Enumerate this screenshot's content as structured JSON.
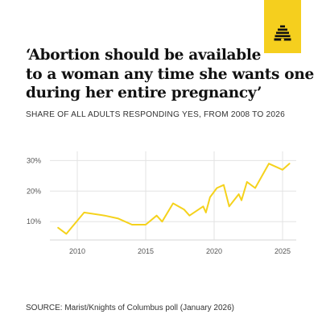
{
  "header": {
    "title_lines": [
      "‘Abortion should be available",
      "to a woman any time she wants one",
      "during her entire pregnancy’"
    ],
    "subtitle": "SHARE OF ALL ADULTS RESPONDING YES, FROM 2008 TO 2026",
    "logo_icon": "beehive-logo-icon",
    "logo_color": "#f5cf1e"
  },
  "footer": {
    "source": "SOURCE: Marist/Knights of Columbus poll (January 2026)"
  },
  "chart_data": {
    "type": "line",
    "title": "",
    "xlabel": "",
    "ylabel": "",
    "x_ticks": [
      "2010",
      "2015",
      "2020",
      "2025"
    ],
    "y_ticks": [
      "10%",
      "20%",
      "30%"
    ],
    "xlim": [
      2008,
      2026
    ],
    "ylim": [
      4,
      33
    ],
    "grid": true,
    "line_color": "#f5d21c",
    "series": [
      {
        "name": "",
        "points": [
          [
            2008.6,
            8
          ],
          [
            2009.2,
            6
          ],
          [
            2010.5,
            13
          ],
          [
            2012,
            12
          ],
          [
            2013,
            11
          ],
          [
            2014,
            9
          ],
          [
            2015,
            9
          ],
          [
            2015.8,
            12
          ],
          [
            2016.2,
            10
          ],
          [
            2017,
            16
          ],
          [
            2017.8,
            14
          ],
          [
            2018.2,
            12
          ],
          [
            2019.2,
            15
          ],
          [
            2019.4,
            13
          ],
          [
            2019.7,
            18
          ],
          [
            2020.2,
            21
          ],
          [
            2020.7,
            22
          ],
          [
            2021.1,
            15
          ],
          [
            2021.8,
            19
          ],
          [
            2022,
            17
          ],
          [
            2022.4,
            23
          ],
          [
            2023,
            21
          ],
          [
            2024,
            29
          ],
          [
            2025,
            27
          ],
          [
            2025.5,
            29
          ]
        ]
      }
    ]
  }
}
